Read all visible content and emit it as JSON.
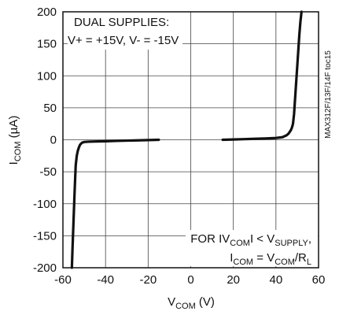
{
  "chart_data": {
    "type": "line",
    "xlim": [
      -60,
      60
    ],
    "ylim": [
      -200,
      200
    ],
    "x_ticks": [
      "-60",
      "-40",
      "-20",
      "0",
      "20",
      "40",
      "60"
    ],
    "y_ticks": [
      "200",
      "150",
      "100",
      "50",
      "0",
      "-50",
      "-100",
      "-150",
      "-200"
    ],
    "x_tick_values": [
      -60,
      -40,
      -20,
      0,
      20,
      40,
      60
    ],
    "y_tick_values": [
      200,
      150,
      100,
      50,
      0,
      -50,
      -100,
      -150,
      -200
    ],
    "grid": true,
    "xlabel": {
      "main": "V",
      "sub": "COM",
      "unit": " (V)"
    },
    "ylabel": {
      "main": "I",
      "sub": "COM",
      "unit": " (µA)"
    },
    "side_label": "MAX312F/13F/14F toc15",
    "annotation_top": {
      "line1": "DUAL SUPPLIES:",
      "line2": "V+ = +15V, V- = -15V"
    },
    "annotation_bottom": {
      "line1": {
        "a": "FOR IV",
        "b": "COM",
        "c": "I < V",
        "d": "SUPPLY",
        "e": ","
      },
      "line2": {
        "a": "I",
        "b": "COM",
        "c": " = V",
        "d": "COM",
        "e": "/R",
        "f": "L"
      }
    },
    "series": [
      {
        "x": [
          -55.8,
          -55.5,
          -55.0,
          -54.5,
          -54.0,
          -53.5,
          -53.0,
          -52.5,
          -52.0,
          -51.5,
          -51.0,
          -50.0,
          -48.0,
          -45.0,
          -40.0,
          -35.0,
          -30.0,
          -25.0,
          -20.0,
          -15.0
        ],
        "y": [
          -200,
          -170,
          -125,
          -80,
          -40,
          -25,
          -17,
          -12,
          -8,
          -6,
          -4.5,
          -3.5,
          -3,
          -2.7,
          -2.3,
          -1.8,
          -1.3,
          -0.9,
          -0.5,
          0
        ]
      },
      {
        "x": [
          15,
          20,
          25,
          30,
          35,
          40,
          43,
          45,
          46,
          47,
          47.5,
          48,
          48.5,
          49,
          49.5,
          50,
          50.5,
          51,
          51.5,
          52
        ],
        "y": [
          0,
          0.5,
          1,
          1.5,
          2,
          2.8,
          4,
          7,
          10,
          15,
          19,
          25,
          40,
          65,
          90,
          115,
          140,
          165,
          185,
          200
        ]
      }
    ]
  }
}
